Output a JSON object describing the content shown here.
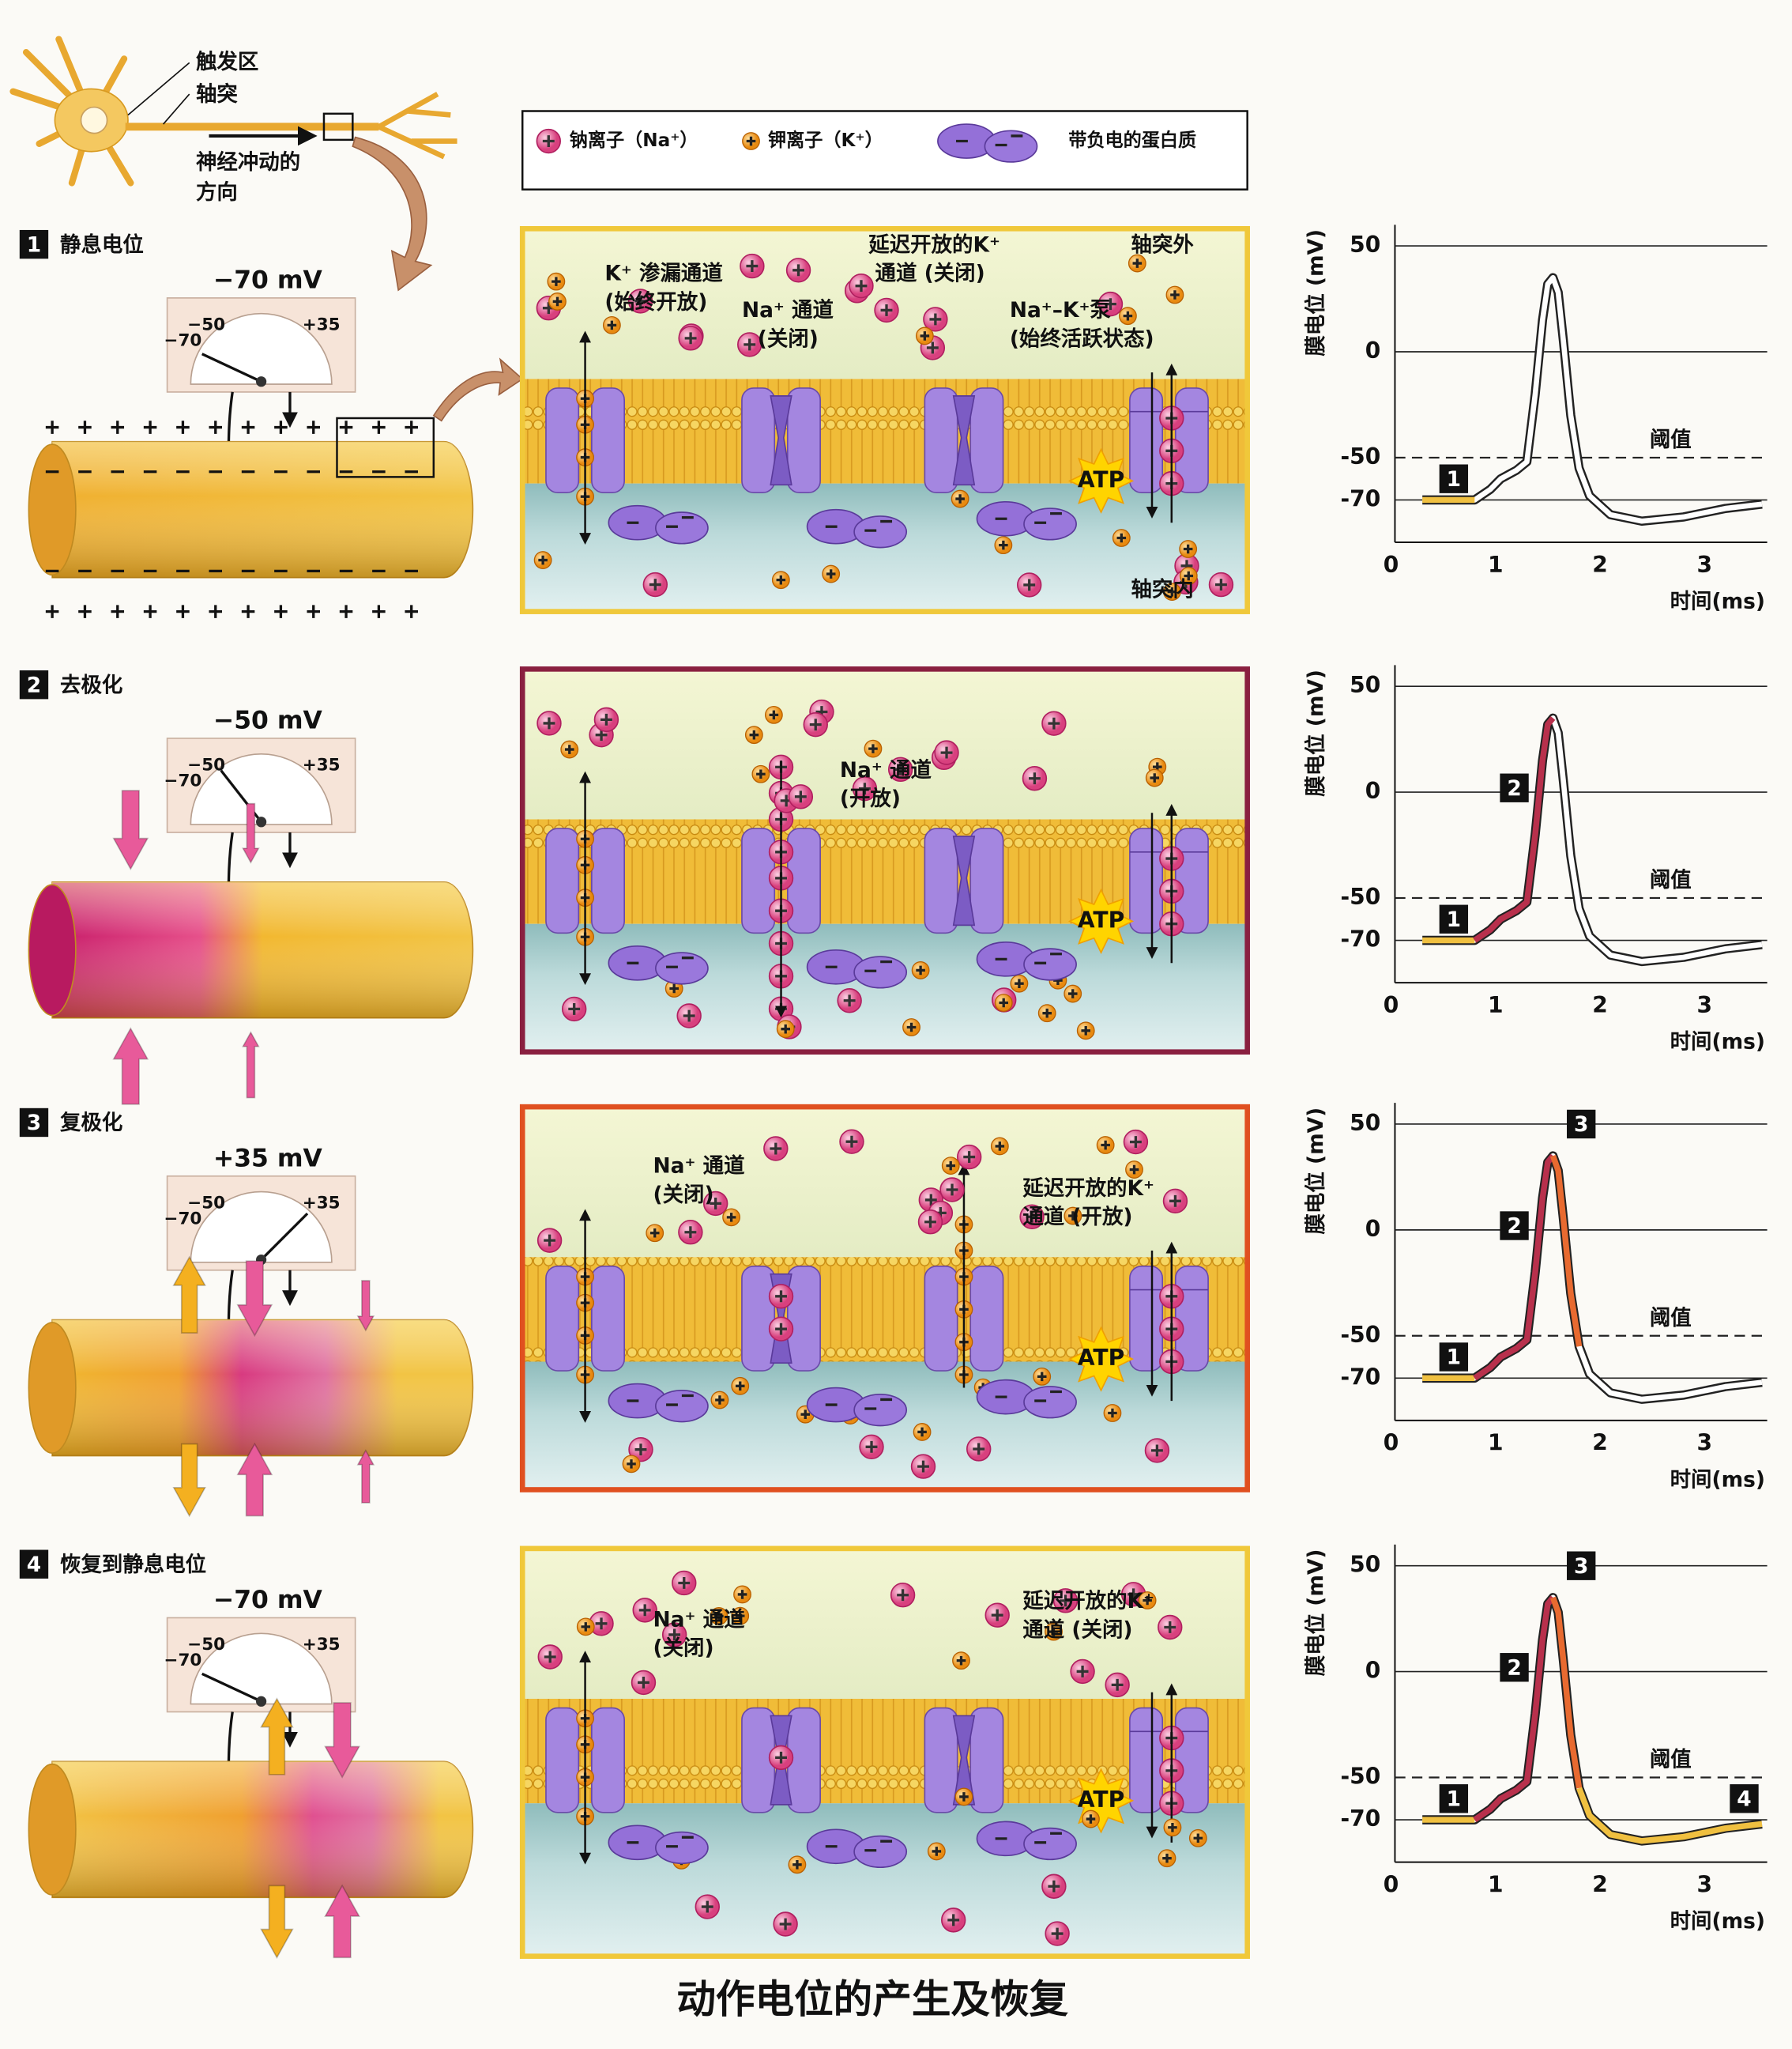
{
  "header": {
    "labels": [
      "触发区",
      "轴突",
      "神经冲动的",
      "方向"
    ]
  },
  "legend": [
    "钠离子（Na⁺）",
    "钾离子（K⁺）",
    "带负电的蛋白质"
  ],
  "meter": {
    "labels": [
      "−50",
      "−70",
      "+35"
    ]
  },
  "stages": [
    {
      "number": "1",
      "name": "静息电位",
      "reading": "−70 mV",
      "labels": [
        "K⁺ 渗漏通道",
        "(始终开放)",
        "Na⁺ 通道",
        "(关闭)",
        "延迟开放的K⁺",
        "通道 (关闭)",
        "Na⁺–K⁺泵",
        "(始终活跃状态)",
        "轴突外",
        "轴突内"
      ],
      "atp": "ATP",
      "graph_markers": [
        "1"
      ]
    },
    {
      "number": "2",
      "name": "去极化",
      "reading": "−50 mV",
      "labels": [
        "Na⁺ 通道",
        "(开放)"
      ],
      "atp": "ATP",
      "graph_markers": [
        "1",
        "2"
      ]
    },
    {
      "number": "3",
      "name": "复极化",
      "reading": "+35 mV",
      "labels": [
        "Na⁺ 通道",
        "(关闭)",
        "延迟开放的K⁺",
        "通道 (开放)"
      ],
      "atp": "ATP",
      "graph_markers": [
        "1",
        "2",
        "3"
      ]
    },
    {
      "number": "4",
      "name": "恢复到静息电位",
      "reading": "−70 mV",
      "labels": [
        "Na⁺ 通道",
        "(关闭)",
        "延迟开放的K⁺",
        "通道 (关闭)"
      ],
      "atp": "ATP",
      "graph_markers": [
        "1",
        "2",
        "3",
        "4"
      ]
    }
  ],
  "graph": {
    "type": "line",
    "y_label": "膜电位 (mV)",
    "x_label": "时间(ms)",
    "threshold_label": "阈值",
    "threshold": -50,
    "xlim": [
      0,
      3.6
    ],
    "ylim": [
      -90,
      60
    ],
    "xticks": [
      0,
      1,
      2,
      3
    ],
    "yticks": [
      50,
      0,
      -50,
      -70
    ],
    "x": [
      0.3,
      0.8,
      0.95,
      1.05,
      1.2,
      1.3,
      1.38,
      1.45,
      1.5,
      1.55,
      1.6,
      1.65,
      1.72,
      1.8,
      1.9,
      2.1,
      2.4,
      2.8,
      3.2,
      3.55
    ],
    "y": [
      -70,
      -70,
      -65,
      -60,
      -56,
      -52,
      -20,
      15,
      32,
      35,
      28,
      5,
      -30,
      -55,
      -68,
      -77,
      -80,
      -78,
      -74,
      -72
    ]
  },
  "title": "动作电位的产生及恢复"
}
